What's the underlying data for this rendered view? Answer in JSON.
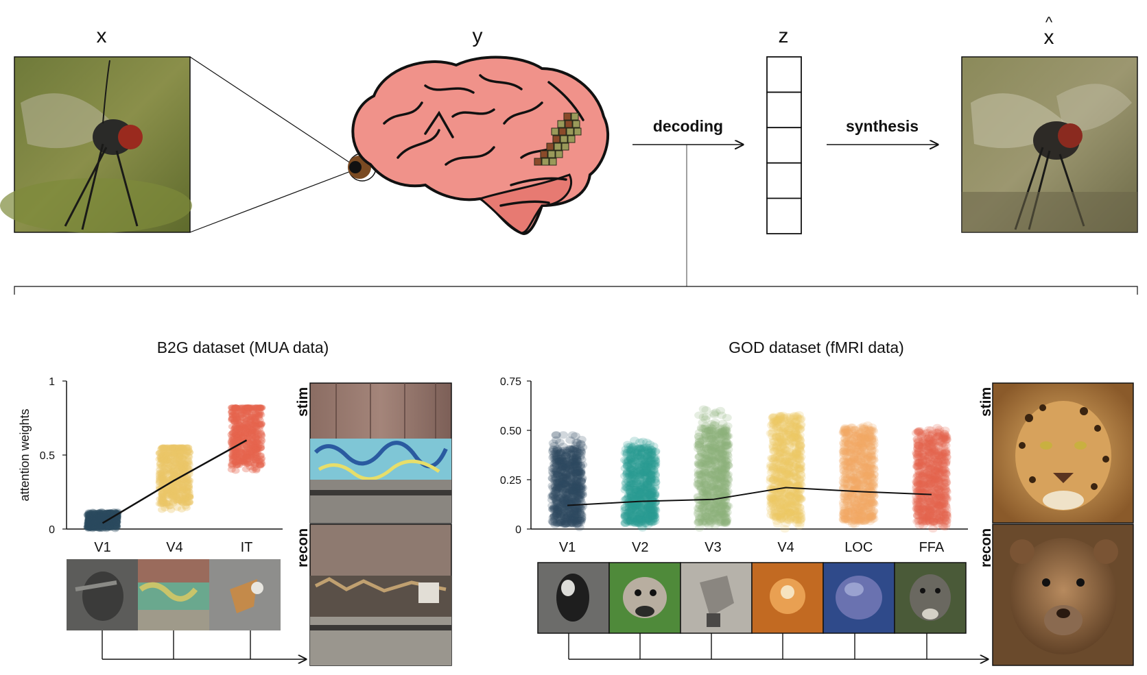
{
  "pipeline": {
    "stimulus_label": "x",
    "brain_label": "y",
    "latent_label": "z",
    "recon_hat": "^",
    "recon_label": "x",
    "decoding_label": "decoding",
    "synthesis_label": "synthesis",
    "latent_cells": 5
  },
  "b2g": {
    "title": "B2G dataset (MUA data)",
    "stim_label": "stim",
    "recon_label": "recon"
  },
  "god": {
    "title": "GOD dataset (fMRI data)",
    "stim_label": "stim",
    "recon_label": "recon"
  },
  "colors": {
    "V1": "#2c4a5e",
    "V2": "#2b9a93",
    "V3": "#8fb07c",
    "V4": "#ecc766",
    "LOC": "#f0a866",
    "FFA": "#e5654d",
    "IT": "#e5654d",
    "brain": "#f0928a",
    "eye": "#7a4a22"
  },
  "chart_data": [
    {
      "type": "scatter",
      "title": "",
      "xlabel": "",
      "ylabel": "attention weights",
      "categories": [
        "V1",
        "V4",
        "IT"
      ],
      "ylim": [
        0,
        1
      ],
      "yticks": [
        "0",
        "0.5",
        "1"
      ],
      "spread": [
        [
          0.0,
          0.12
        ],
        [
          0.13,
          0.55
        ],
        [
          0.39,
          0.82
        ]
      ],
      "mean": [
        0.04,
        0.33,
        0.6
      ]
    },
    {
      "type": "scatter",
      "title": "",
      "xlabel": "",
      "ylabel": "",
      "categories": [
        "V1",
        "V2",
        "V3",
        "V4",
        "LOC",
        "FFA"
      ],
      "ylim": [
        0,
        0.75
      ],
      "yticks": [
        "0",
        "0.25",
        "0.50",
        "0.75"
      ],
      "spread": [
        [
          0.0,
          0.48
        ],
        [
          0.0,
          0.45
        ],
        [
          0.0,
          0.61
        ],
        [
          0.0,
          0.59
        ],
        [
          0.0,
          0.53
        ],
        [
          0.0,
          0.52
        ]
      ],
      "mean": [
        0.12,
        0.14,
        0.15,
        0.21,
        0.19,
        0.175
      ]
    }
  ]
}
